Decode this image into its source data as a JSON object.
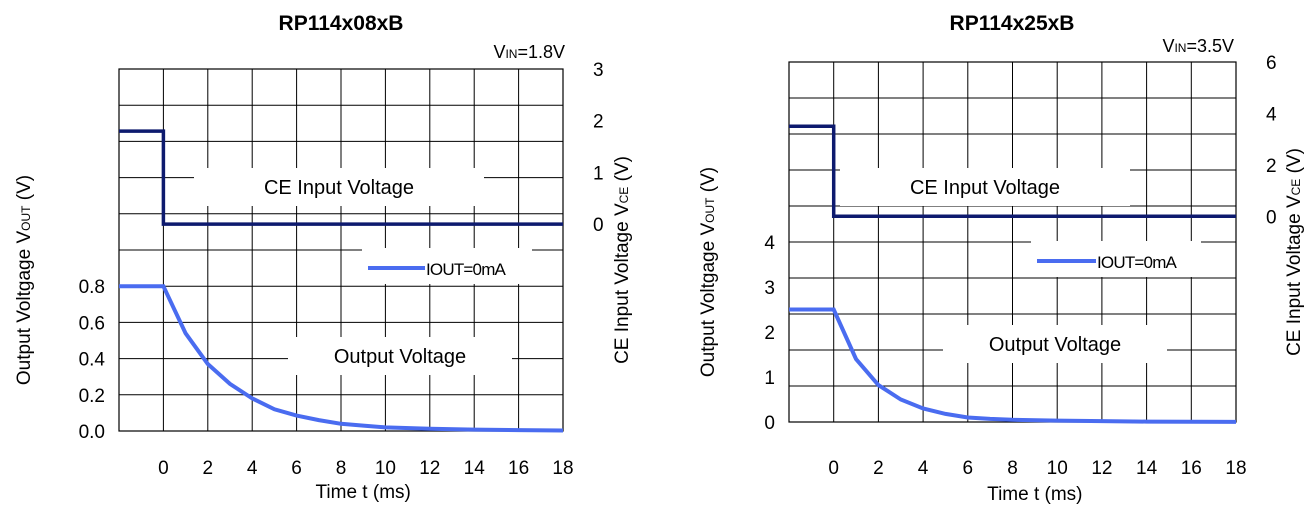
{
  "chart_data": [
    {
      "type": "line",
      "title": "RP114x08xB",
      "condition": "VIN=1.8V",
      "xlabel": "Time t (ms)",
      "ylabel_left": "Output Voltgage VOUT (V)",
      "ylabel_right": "CE Input Voltage VCE (V)",
      "x_range": [
        -2,
        18
      ],
      "x_ticks": [
        "0",
        "2",
        "4",
        "6",
        "8",
        "10",
        "12",
        "14",
        "16",
        "18"
      ],
      "y_left_range": [
        0,
        2.0
      ],
      "y_left_ticks": [
        "0.0",
        "0.2",
        "0.4",
        "0.6",
        "0.8"
      ],
      "y_right_range": [
        -4,
        3
      ],
      "y_right_ticks": [
        "0",
        "1",
        "2",
        "3"
      ],
      "grid": true,
      "legend_position": "right-middle",
      "annotations": {
        "ce_label": "CE Input Voltage",
        "out_label": "Output Voltage"
      },
      "series": [
        {
          "name": "IOUT=0mA",
          "axis": "left",
          "color": "#4a6cf0",
          "x": [
            -2,
            0,
            1,
            2,
            3,
            4,
            5,
            6,
            7,
            8,
            9,
            10,
            12,
            14,
            16,
            18
          ],
          "y": [
            0.8,
            0.8,
            0.54,
            0.37,
            0.26,
            0.18,
            0.12,
            0.085,
            0.06,
            0.04,
            0.03,
            0.02,
            0.012,
            0.008,
            0.005,
            0.003
          ]
        },
        {
          "name": "CE Input Voltage",
          "axis": "right",
          "color": "#0d1a6e",
          "x": [
            -2,
            0,
            0,
            18
          ],
          "y": [
            1.8,
            1.8,
            0,
            0
          ]
        }
      ]
    },
    {
      "type": "line",
      "title": "RP114x25xB",
      "condition": "VIN=3.5V",
      "xlabel": "Time t (ms)",
      "ylabel_left": "Output Voltgage VOUT (V)",
      "ylabel_right": "CE Input Voltage VCE (V)",
      "x_range": [
        -2,
        18
      ],
      "x_ticks": [
        "0",
        "2",
        "4",
        "6",
        "8",
        "10",
        "12",
        "14",
        "16",
        "18"
      ],
      "y_left_range": [
        0,
        8
      ],
      "y_left_ticks": [
        "0",
        "1",
        "2",
        "3",
        "4"
      ],
      "y_right_range": [
        -8,
        6
      ],
      "y_right_ticks": [
        "0",
        "2",
        "4",
        "6"
      ],
      "grid": true,
      "legend_position": "right-middle",
      "annotations": {
        "ce_label": "CE Input Voltage",
        "out_label": "Output Voltage"
      },
      "series": [
        {
          "name": "IOUT=0mA",
          "axis": "left",
          "color": "#4a6cf0",
          "x": [
            -2,
            0,
            1,
            2,
            3,
            4,
            5,
            6,
            7,
            8,
            10,
            12,
            14,
            16,
            18
          ],
          "y": [
            2.5,
            2.5,
            1.4,
            0.82,
            0.5,
            0.3,
            0.18,
            0.1,
            0.07,
            0.05,
            0.03,
            0.02,
            0.01,
            0.005,
            0.003
          ]
        },
        {
          "name": "CE Input Voltage",
          "axis": "right",
          "color": "#0d1a6e",
          "x": [
            -2,
            0,
            0,
            18
          ],
          "y": [
            3.5,
            3.5,
            0,
            0
          ]
        }
      ]
    }
  ]
}
